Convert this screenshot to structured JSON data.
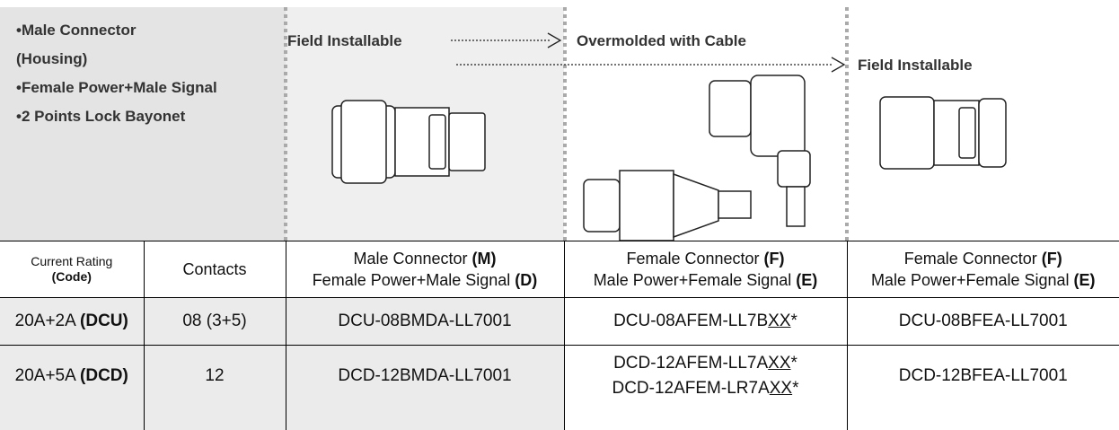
{
  "top": {
    "bullets": [
      [
        "Male Connector",
        "(Housing)"
      ],
      [
        "Female Power+Male Signal"
      ],
      [
        "2 Points Lock Bayonet"
      ]
    ],
    "labels": [
      "Field Installable",
      "Overmolded with Cable",
      "Field Installable"
    ]
  },
  "table": {
    "header": [
      [
        [
          {
            "text": "Current Rating"
          }
        ],
        [
          {
            "text": "(Code)",
            "bold": true
          }
        ]
      ],
      [
        [
          {
            "text": "Contacts"
          }
        ]
      ],
      [
        [
          {
            "text": "Male Connector "
          },
          {
            "text": "(M)",
            "bold": true
          }
        ],
        [
          {
            "text": "Female Power+Male Signal "
          },
          {
            "text": "(D)",
            "bold": true
          }
        ]
      ],
      [
        [
          {
            "text": "Female Connector "
          },
          {
            "text": "(F)",
            "bold": true
          }
        ],
        [
          {
            "text": "Male Power+Female Signal "
          },
          {
            "text": "(E)",
            "bold": true
          }
        ]
      ],
      [
        [
          {
            "text": "Female Connector "
          },
          {
            "text": "(F)",
            "bold": true
          }
        ],
        [
          {
            "text": "Male Power+Female Signal "
          },
          {
            "text": "(E)",
            "bold": true
          }
        ]
      ]
    ],
    "rows": [
      [
        [
          [
            {
              "text": "20A+2A "
            },
            {
              "text": "(DCU)",
              "bold": true
            }
          ]
        ],
        [
          [
            {
              "text": "08 (3+5)"
            }
          ]
        ],
        [
          [
            {
              "text": "DCU-08BMDA-LL7001"
            }
          ]
        ],
        [
          [
            {
              "text": "DCU-08AFEM-LL7B"
            },
            {
              "text": "XX",
              "underline": true
            },
            {
              "text": "*"
            }
          ]
        ],
        [
          [
            {
              "text": "DCU-08BFEA-LL7001"
            }
          ]
        ]
      ],
      [
        [
          [
            {
              "text": "20A+5A "
            },
            {
              "text": "(DCD)",
              "bold": true
            }
          ]
        ],
        [
          [
            {
              "text": "12"
            }
          ]
        ],
        [
          [
            {
              "text": "DCD-12BMDA-LL7001"
            }
          ]
        ],
        [
          [
            {
              "text": "DCD-12AFEM-LL7A"
            },
            {
              "text": "XX",
              "underline": true
            },
            {
              "text": "*"
            }
          ],
          [
            {
              "text": "DCD-12AFEM-LR7A"
            },
            {
              "text": "XX",
              "underline": true
            },
            {
              "text": "*"
            }
          ]
        ],
        [
          [
            {
              "text": "DCD-12BFEA-LL7001"
            }
          ]
        ]
      ]
    ]
  }
}
